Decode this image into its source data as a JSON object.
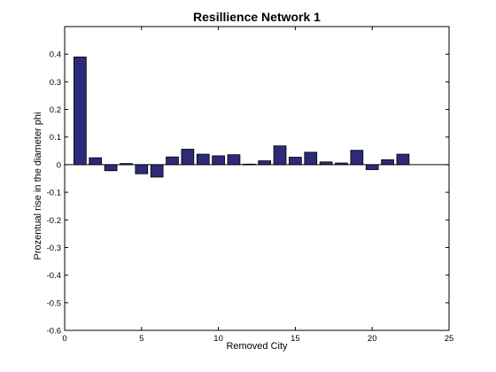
{
  "chart_data": {
    "type": "bar",
    "title": "Resillience Network 1",
    "xlabel": "Removed City",
    "ylabel": "Prozentual rise in the diameter phi",
    "xlim": [
      0,
      25
    ],
    "ylim": [
      -0.6,
      0.5
    ],
    "x_ticks": [
      0,
      5,
      10,
      15,
      20,
      25
    ],
    "x_tick_labels": [
      "0",
      "5",
      "10",
      "15",
      "20",
      "25"
    ],
    "y_ticks": [
      0.4,
      0.3,
      0.2,
      0.1,
      0,
      -0.1,
      -0.2,
      -0.3,
      -0.4,
      -0.5,
      -0.6
    ],
    "y_tick_labels": [
      "0.4",
      "0.3",
      "0.2",
      "0.1",
      "0",
      "-0.1",
      "-0.2",
      "-0.3",
      "-0.4",
      "-0.5",
      "-0.6"
    ],
    "grid": false,
    "bar_color": "#2e2a7a",
    "bar_edge_color": "#000000",
    "categories": [
      1,
      2,
      3,
      4,
      5,
      6,
      7,
      8,
      9,
      10,
      11,
      12,
      13,
      14,
      15,
      16,
      17,
      18,
      19,
      20,
      21,
      22
    ],
    "values": [
      0.39,
      0.025,
      -0.022,
      0.004,
      -0.033,
      -0.045,
      0.028,
      0.056,
      0.038,
      0.032,
      0.036,
      0.002,
      0.014,
      0.068,
      0.027,
      0.045,
      0.01,
      0.006,
      0.052,
      -0.018,
      0.018,
      0.038
    ]
  }
}
